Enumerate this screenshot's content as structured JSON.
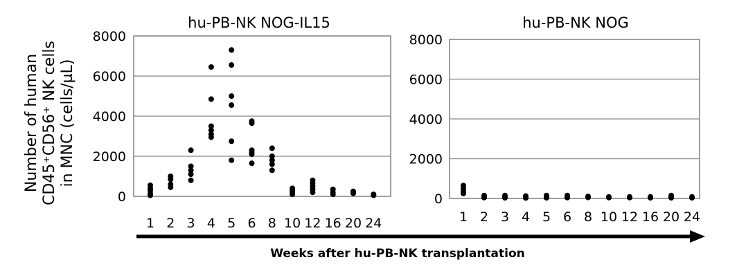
{
  "chart_data": {
    "type": "scatter",
    "ylabel_lines": [
      "Number of human",
      "CD45⁺CD56⁺ NK cells",
      "in MNC (cells/µL)"
    ],
    "xlabel": "Weeks after hu-PB-NK transplantation",
    "categories": [
      "1",
      "2",
      "3",
      "4",
      "5",
      "6",
      "8",
      "10",
      "12",
      "16",
      "20",
      "24"
    ],
    "grid": true,
    "panels": [
      {
        "title": "hu-PB-NK NOG-IL15",
        "ylim": [
          0,
          8000
        ],
        "yticks": [
          "0",
          "2000",
          "4000",
          "6000",
          "8000"
        ],
        "ytick_values": [
          0,
          2000,
          4000,
          6000,
          8000
        ],
        "points": [
          {
            "x": "1",
            "y": [
              550,
              400,
              300,
              150,
              50
            ]
          },
          {
            "x": "2",
            "y": [
              1000,
              850,
              600,
              450
            ]
          },
          {
            "x": "3",
            "y": [
              2300,
              1500,
              1300,
              1100,
              800
            ]
          },
          {
            "x": "4",
            "y": [
              6450,
              4850,
              3500,
              3300,
              3100,
              2950
            ]
          },
          {
            "x": "5",
            "y": [
              7300,
              6550,
              5000,
              4550,
              2750,
              1800
            ]
          },
          {
            "x": "6",
            "y": [
              3750,
              3650,
              2300,
              2200,
              2100,
              1650
            ]
          },
          {
            "x": "8",
            "y": [
              2400,
              2000,
              1800,
              1600,
              1300
            ]
          },
          {
            "x": "10",
            "y": [
              400,
              300,
              200,
              100
            ]
          },
          {
            "x": "12",
            "y": [
              800,
              650,
              500,
              350,
              200
            ]
          },
          {
            "x": "16",
            "y": [
              350,
              200,
              100
            ]
          },
          {
            "x": "20",
            "y": [
              250,
              200,
              150
            ]
          },
          {
            "x": "24",
            "y": [
              100,
              50
            ]
          }
        ]
      },
      {
        "title": "hu-PB-NK NOG",
        "ylim": [
          0,
          8000
        ],
        "yticks": [
          "0",
          "2000",
          "4000",
          "6000",
          "8000"
        ],
        "ytick_values": [
          0,
          2000,
          4000,
          6000,
          8000
        ],
        "points": [
          {
            "x": "1",
            "y": [
              650,
              500,
              350,
              250
            ]
          },
          {
            "x": "2",
            "y": [
              150,
              80,
              40
            ]
          },
          {
            "x": "3",
            "y": [
              150,
              80,
              30
            ]
          },
          {
            "x": "4",
            "y": [
              120,
              60,
              20
            ]
          },
          {
            "x": "5",
            "y": [
              150,
              80,
              30
            ]
          },
          {
            "x": "6",
            "y": [
              150,
              90,
              40
            ]
          },
          {
            "x": "8",
            "y": [
              100,
              50
            ]
          },
          {
            "x": "10",
            "y": [
              80,
              40
            ]
          },
          {
            "x": "12",
            "y": [
              80,
              40
            ]
          },
          {
            "x": "16",
            "y": [
              80,
              30
            ]
          },
          {
            "x": "20",
            "y": [
              150,
              80,
              30
            ]
          },
          {
            "x": "24",
            "y": [
              80,
              30
            ]
          }
        ]
      }
    ]
  },
  "colors": {
    "marker": "#000000",
    "grid": "#9a9a9a",
    "frame": "#808080",
    "arrow": "#000000"
  }
}
